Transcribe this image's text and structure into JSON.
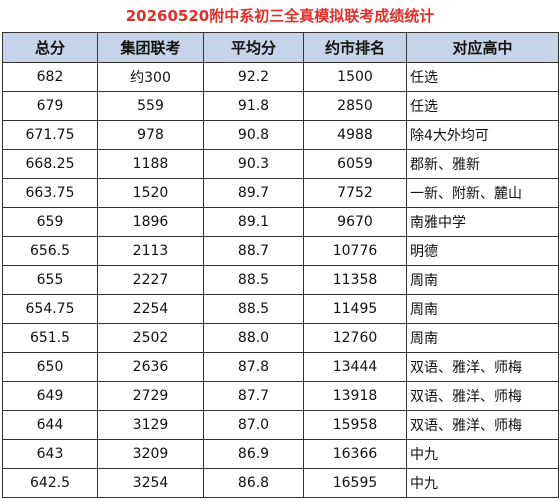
{
  "title": "20260520附中系初三全真模拟联考成绩统计",
  "table": {
    "header": [
      "总分",
      "集团联考",
      "平均分",
      "约市排名",
      "对应高中"
    ],
    "rows": [
      [
        "682",
        "约300",
        "92.2",
        "1500",
        "任选"
      ],
      [
        "679",
        "559",
        "91.8",
        "2850",
        "任选"
      ],
      [
        "671.75",
        "978",
        "90.8",
        "4988",
        "除4大外均可"
      ],
      [
        "668.25",
        "1188",
        "90.3",
        "6059",
        "郡新、雅新"
      ],
      [
        "663.75",
        "1520",
        "89.7",
        "7752",
        "一新、附新、麓山"
      ],
      [
        "659",
        "1896",
        "89.1",
        "9670",
        "南雅中学"
      ],
      [
        "656.5",
        "2113",
        "88.7",
        "10776",
        "明德"
      ],
      [
        "655",
        "2227",
        "88.5",
        "11358",
        "周南"
      ],
      [
        "654.75",
        "2254",
        "88.5",
        "11495",
        "周南"
      ],
      [
        "651.5",
        "2502",
        "88.0",
        "12760",
        "周南"
      ],
      [
        "650",
        "2636",
        "87.8",
        "13444",
        "双语、雅洋、师梅"
      ],
      [
        "649",
        "2729",
        "87.7",
        "13918",
        "双语、雅洋、师梅"
      ],
      [
        "644",
        "3129",
        "87.0",
        "15958",
        "双语、雅洋、师梅"
      ],
      [
        "643",
        "3209",
        "86.9",
        "16366",
        "中九"
      ],
      [
        "642.5",
        "3254",
        "86.8",
        "16595",
        "中九"
      ]
    ]
  }
}
